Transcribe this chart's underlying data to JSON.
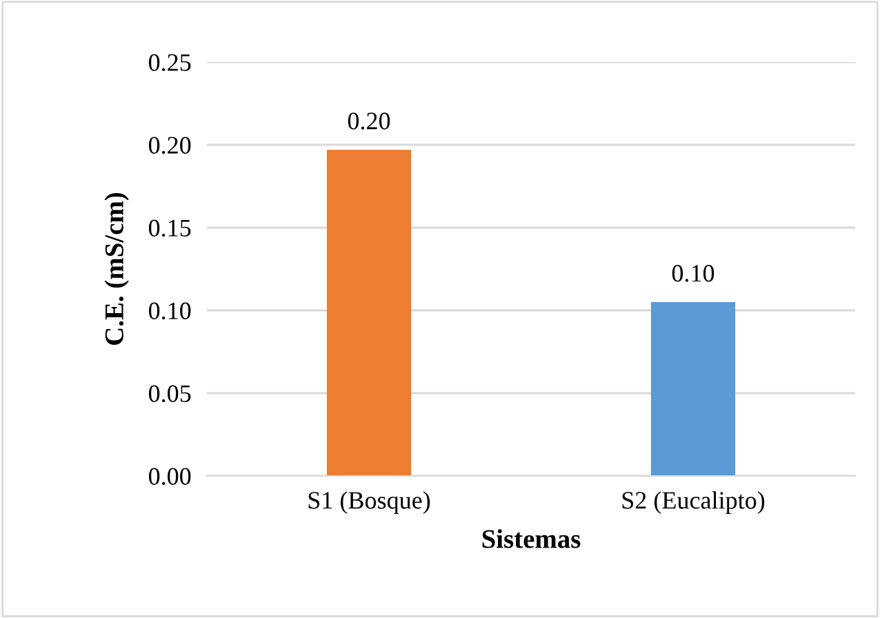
{
  "chart_data": {
    "type": "bar",
    "xlabel": "Sistemas",
    "ylabel": "C.E. (mS/cm)",
    "categories": [
      "S1 (Bosque)",
      "S2 (Eucalipto)"
    ],
    "values": [
      0.197,
      0.105
    ],
    "colors": [
      "#ed7d31",
      "#5b9bd5"
    ],
    "value_labels": [
      "0.20",
      "0.10"
    ],
    "ylim": [
      0,
      0.25
    ],
    "yticks": [
      {
        "value": 0,
        "label": "0.00"
      },
      {
        "value": 0.05,
        "label": "0.05"
      },
      {
        "value": 0.1,
        "label": "0.10"
      },
      {
        "value": 0.15,
        "label": "0.15"
      },
      {
        "value": 0.2,
        "label": "0.20"
      },
      {
        "value": 0.25,
        "label": "0.25"
      }
    ],
    "grid": "y",
    "legend": false
  }
}
